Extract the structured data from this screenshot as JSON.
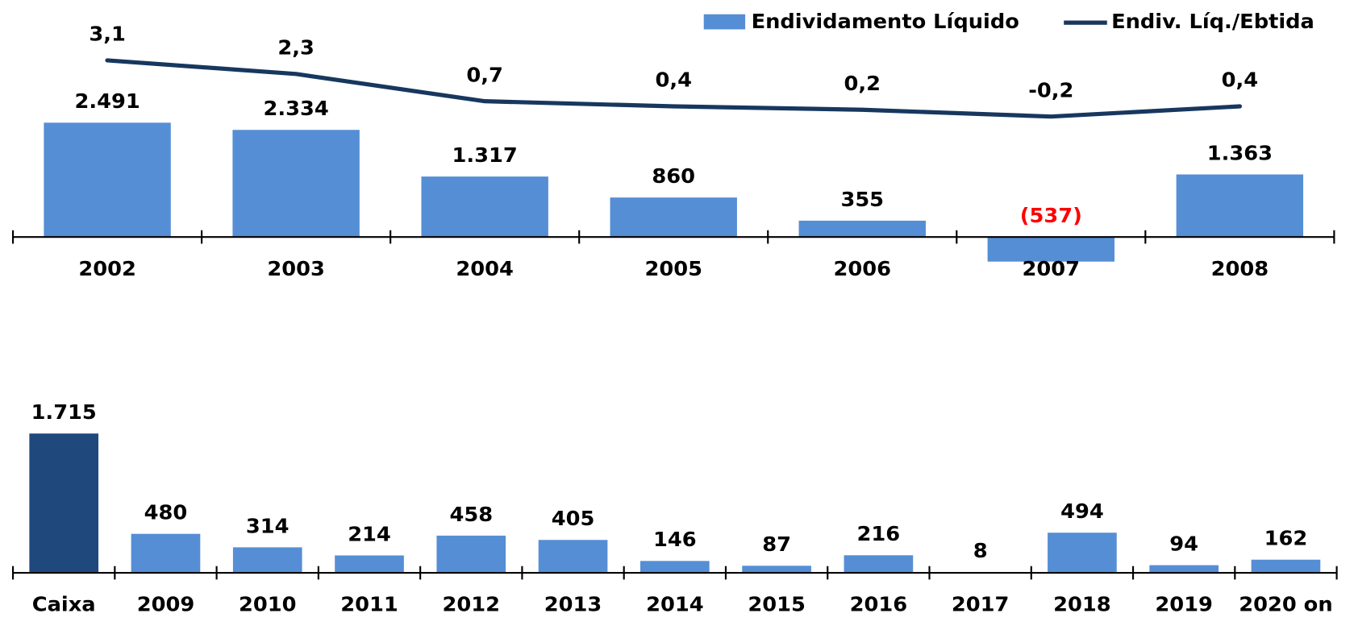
{
  "chart_data": [
    {
      "type": "bar",
      "categories": [
        "2002",
        "2003",
        "2004",
        "2005",
        "2006",
        "2007",
        "2008"
      ],
      "series": [
        {
          "name": "Endividamento Líquido",
          "type": "bar",
          "color": "#558ed5",
          "values": [
            2491,
            2334,
            1317,
            860,
            355,
            -537,
            1363
          ],
          "value_labels": [
            "2.491",
            "2.334",
            "1.317",
            "860",
            "355",
            "(537)",
            "1.363"
          ]
        },
        {
          "name": "Endiv. Líq./Ebtida",
          "type": "line",
          "axis": "y2",
          "color": "#17375e",
          "values": [
            3.1,
            2.3,
            0.7,
            0.4,
            0.2,
            -0.2,
            0.4
          ],
          "value_labels": [
            "3,1",
            "2,3",
            "0,7",
            "0,4",
            "0,2",
            "-0,2",
            "0,4"
          ]
        }
      ],
      "negative_label_color": "#ff0000",
      "ylim": [
        -1050,
        4800
      ],
      "y2lim": [
        -10.1,
        5.66
      ],
      "legend": "top-right"
    },
    {
      "type": "bar",
      "categories": [
        "Caixa",
        "2009",
        "2010",
        "2011",
        "2012",
        "2013",
        "2014",
        "2015",
        "2016",
        "2017",
        "2018",
        "2019",
        "2020 on"
      ],
      "values": [
        1715,
        480,
        314,
        214,
        458,
        405,
        146,
        87,
        216,
        8,
        494,
        94,
        162
      ],
      "value_labels": [
        "1.715",
        "480",
        "314",
        "214",
        "458",
        "405",
        "146",
        "87",
        "216",
        "8",
        "494",
        "94",
        "162"
      ],
      "colors": [
        "#1f497d",
        "#558ed5",
        "#558ed5",
        "#558ed5",
        "#558ed5",
        "#558ed5",
        "#558ed5",
        "#558ed5",
        "#558ed5",
        "#558ed5",
        "#558ed5",
        "#558ed5",
        "#558ed5"
      ],
      "ylim": [
        -175,
        2200
      ]
    }
  ]
}
